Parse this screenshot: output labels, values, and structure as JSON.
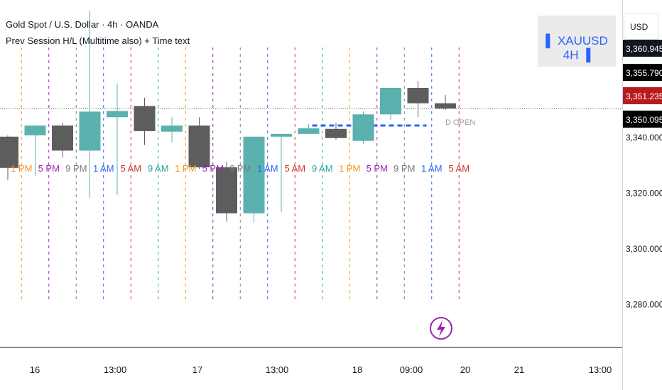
{
  "header": {
    "title": "Gold Spot / U.S. Dollar · 4h · OANDA",
    "indicator": "Prev Session H/L (Multitime also) + Time text"
  },
  "badge": {
    "text": "▌ XAUUSD 4H ▐"
  },
  "price_scale": {
    "currency": "USD"
  },
  "price_tags": [
    {
      "value": "3,360.945",
      "bg": "#131722"
    },
    {
      "value": "3,355.790",
      "bg": "#000000"
    },
    {
      "value": "3,351.235",
      "bg": "#b71c1c"
    },
    {
      "value": "3,350.095",
      "bg": "#000000"
    }
  ],
  "colors": {
    "bull": "#5ab1ad",
    "bear": "#5d5d5d",
    "d_open_line": "#2962ff",
    "session_colors": {
      "1 PM": "#f7931a",
      "5 PM": "#9c27b0",
      "9 PM": "#787b86",
      "1 AM": "#2962ff",
      "5 AM": "#d32f2f",
      "9 AM": "#26a69a"
    }
  },
  "chart_data": {
    "type": "candlestick",
    "symbol": "XAUUSD",
    "timeframe": "4H",
    "ylim": [
      3272,
      3372
    ],
    "y_ticks": [
      "3,280.000",
      "3,300.000",
      "3,320.000",
      "3,340.000"
    ],
    "x_ticks": [
      "16",
      "13:00",
      "17",
      "13:00",
      "18",
      "09:00",
      "20",
      "21",
      "13:00"
    ],
    "candles": [
      {
        "o": 3340.0,
        "h": 3340.5,
        "l": 3324.5,
        "c": 3328.8
      },
      {
        "o": 3340.5,
        "h": 3344.0,
        "l": 3326.0,
        "c": 3344.0
      },
      {
        "o": 3344.0,
        "h": 3345.0,
        "l": 3332.5,
        "c": 3335.0
      },
      {
        "o": 3335.0,
        "h": 3385.0,
        "l": 3318.0,
        "c": 3349.0
      },
      {
        "o": 3347.0,
        "h": 3359.0,
        "l": 3319.0,
        "c": 3349.2
      },
      {
        "o": 3351.0,
        "h": 3354.0,
        "l": 3337.0,
        "c": 3342.0
      },
      {
        "o": 3341.8,
        "h": 3347.0,
        "l": 3338.0,
        "c": 3344.0
      },
      {
        "o": 3344.0,
        "h": 3347.0,
        "l": 3328.5,
        "c": 3329.0
      },
      {
        "o": 3329.0,
        "h": 3331.0,
        "l": 3309.5,
        "c": 3312.5
      },
      {
        "o": 3312.5,
        "h": 3340.0,
        "l": 3309.0,
        "c": 3340.0
      },
      {
        "o": 3340.0,
        "h": 3341.0,
        "l": 3313.0,
        "c": 3341.0
      },
      {
        "o": 3341.0,
        "h": 3344.5,
        "l": 3341.0,
        "c": 3343.0
      },
      {
        "o": 3342.8,
        "h": 3345.0,
        "l": 3339.0,
        "c": 3339.5
      },
      {
        "o": 3338.5,
        "h": 3349.0,
        "l": 3337.5,
        "c": 3348.0
      },
      {
        "o": 3348.0,
        "h": 3357.5,
        "l": 3346.0,
        "c": 3357.5
      },
      {
        "o": 3357.5,
        "h": 3360.0,
        "l": 3347.0,
        "c": 3352.0
      },
      {
        "o": 3352.0,
        "h": 3355.0,
        "l": 3349.5,
        "c": 3350.1
      }
    ],
    "current_price": 3350.095,
    "d_open": {
      "label": "D OPEN",
      "value": 3344.0
    },
    "session_labels": [
      "1 PM",
      "5 PM",
      "9 PM",
      "1 AM",
      "5 AM",
      "9 AM",
      "1 PM",
      "5 PM",
      "9 PM",
      "1 AM",
      "5 AM",
      "9 AM",
      "1 PM",
      "5 PM",
      "9 PM",
      "1 AM",
      "5 AM"
    ]
  }
}
